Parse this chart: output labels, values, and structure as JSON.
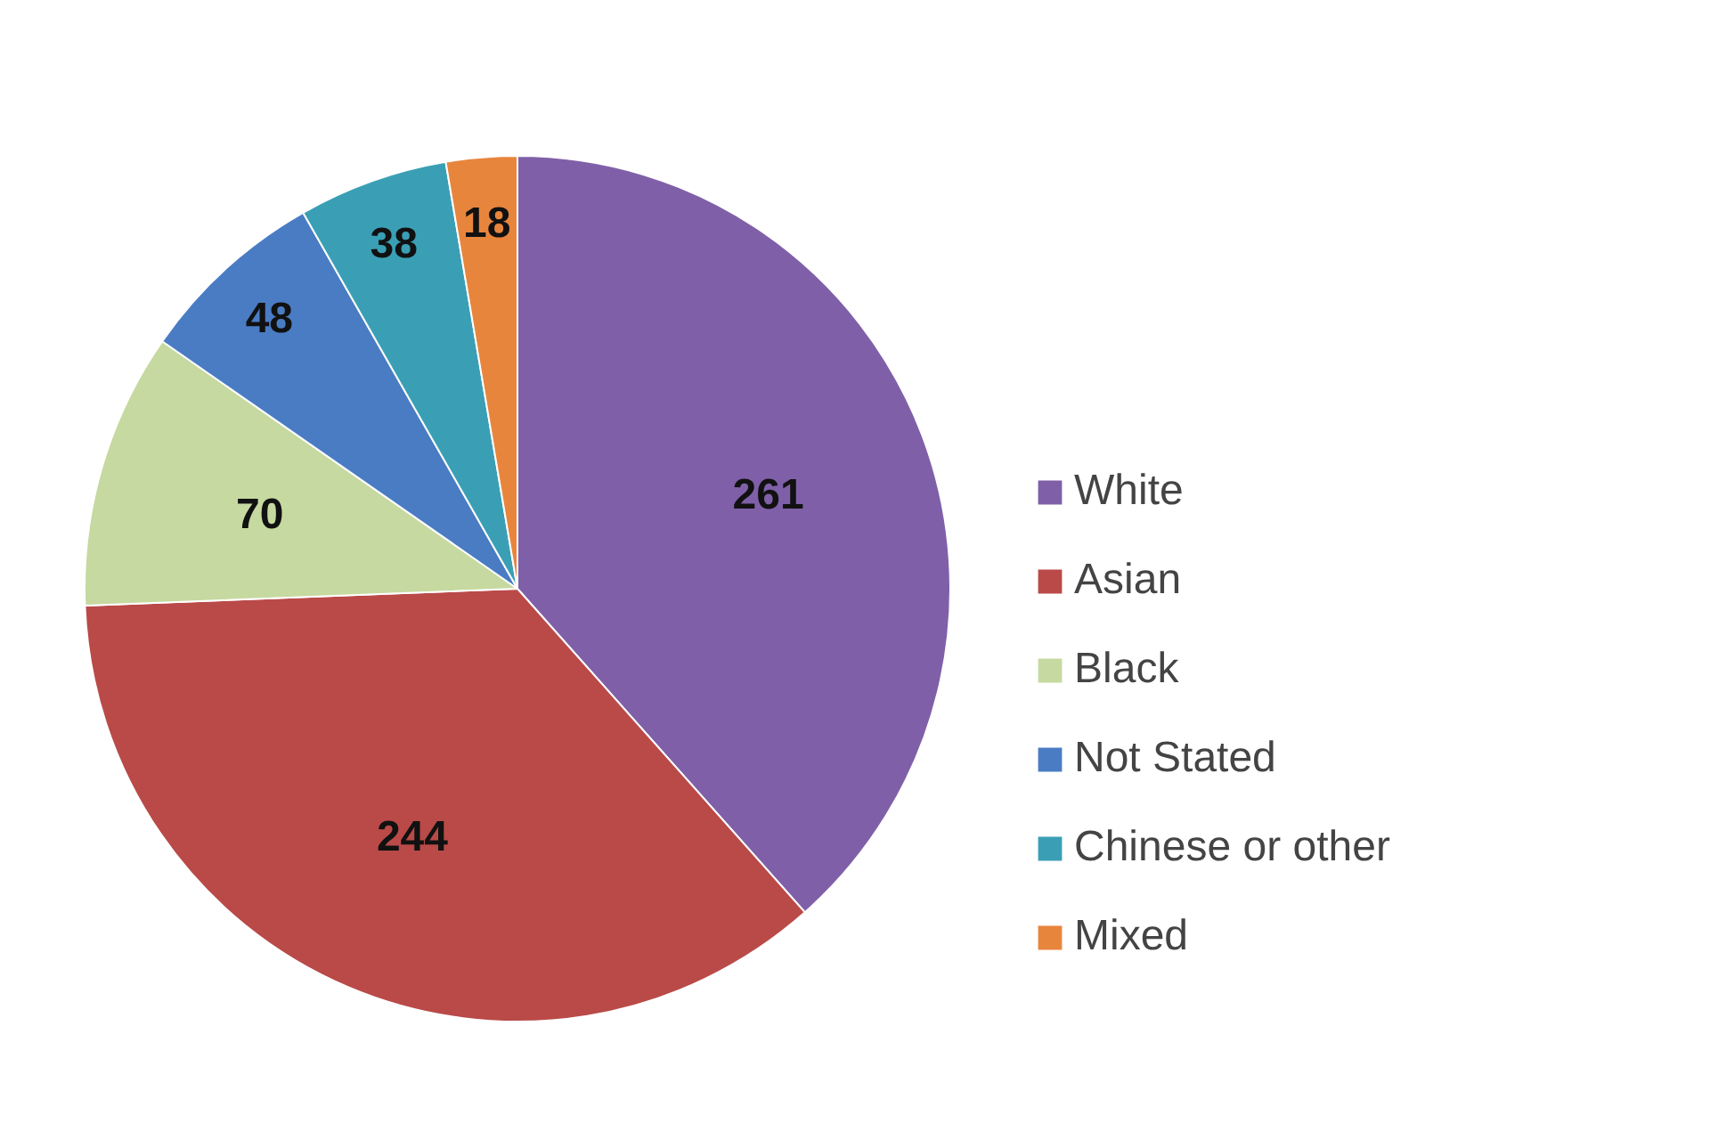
{
  "chart_data": {
    "type": "pie",
    "categories": [
      "White",
      "Asian",
      "Black",
      "Not Stated",
      "Chinese or other",
      "Mixed"
    ],
    "values": [
      261,
      244,
      70,
      48,
      38,
      18
    ],
    "colors": [
      "#7f60a8",
      "#b94a48",
      "#c6d9a0",
      "#4a7cc4",
      "#3a9fb5",
      "#e8853d"
    ],
    "data_labels": true,
    "legend": "right"
  }
}
